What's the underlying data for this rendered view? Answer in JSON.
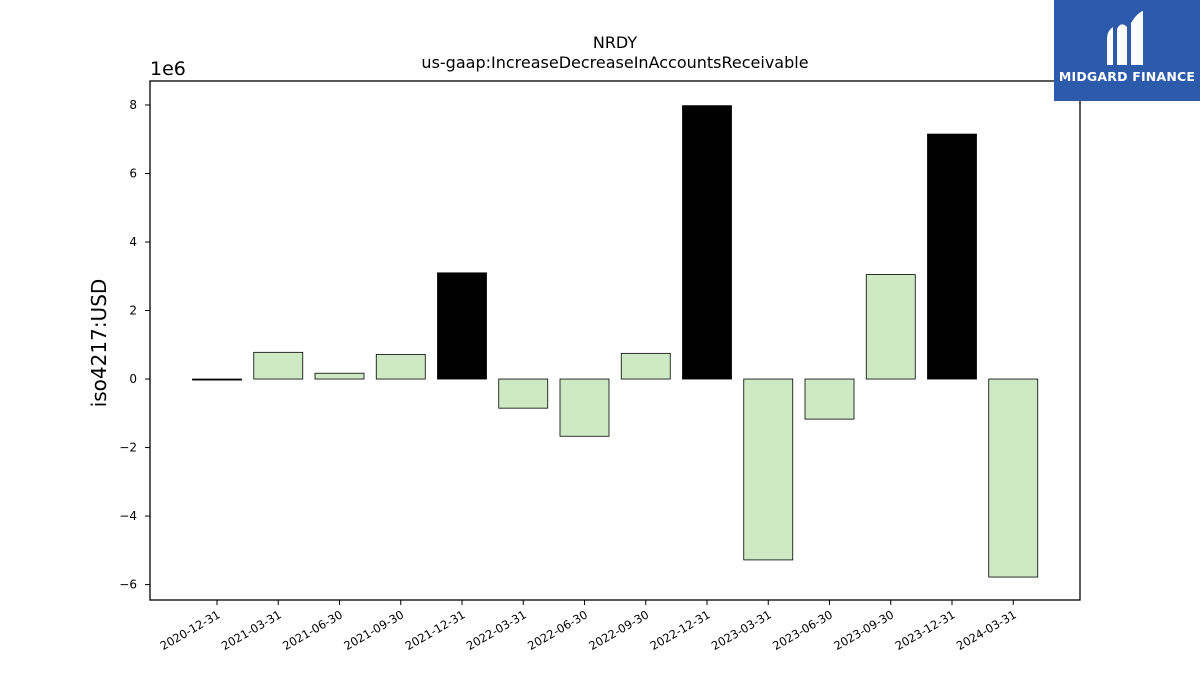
{
  "chart_data": {
    "type": "bar",
    "title": "NRDY",
    "subtitle": "us-gaap:IncreaseDecreaseInAccountsReceivable",
    "ylabel": "iso4217:USD",
    "xlabel": "",
    "scale_label": "1e6",
    "scale": 1000000,
    "ylim": [
      -6.45,
      8.7
    ],
    "yticks": [
      -6,
      -4,
      -2,
      0,
      2,
      4,
      6,
      8
    ],
    "ytick_labels": [
      "−6",
      "−4",
      "−2",
      "0",
      "2",
      "4",
      "6",
      "8"
    ],
    "grid": false,
    "categories": [
      "2020-12-31",
      "2021-03-31",
      "2021-06-30",
      "2021-09-30",
      "2021-12-31",
      "2022-03-31",
      "2022-06-30",
      "2022-09-30",
      "2022-12-31",
      "2023-03-31",
      "2023-06-30",
      "2023-09-30",
      "2023-12-31",
      "2024-03-31"
    ],
    "values": [
      -0.03,
      0.78,
      0.17,
      0.72,
      3.1,
      -0.85,
      -1.67,
      0.75,
      7.98,
      -5.28,
      -1.17,
      3.05,
      7.15,
      -5.78
    ],
    "highlight": [
      true,
      false,
      false,
      false,
      true,
      false,
      false,
      false,
      true,
      false,
      false,
      false,
      true,
      false
    ],
    "colors": {
      "normal": "#ceeac4",
      "highlight": "#000000",
      "edge": "#000000"
    }
  },
  "logo": {
    "text": "MIDGARD FINANCE",
    "background": "#2d5bab"
  }
}
